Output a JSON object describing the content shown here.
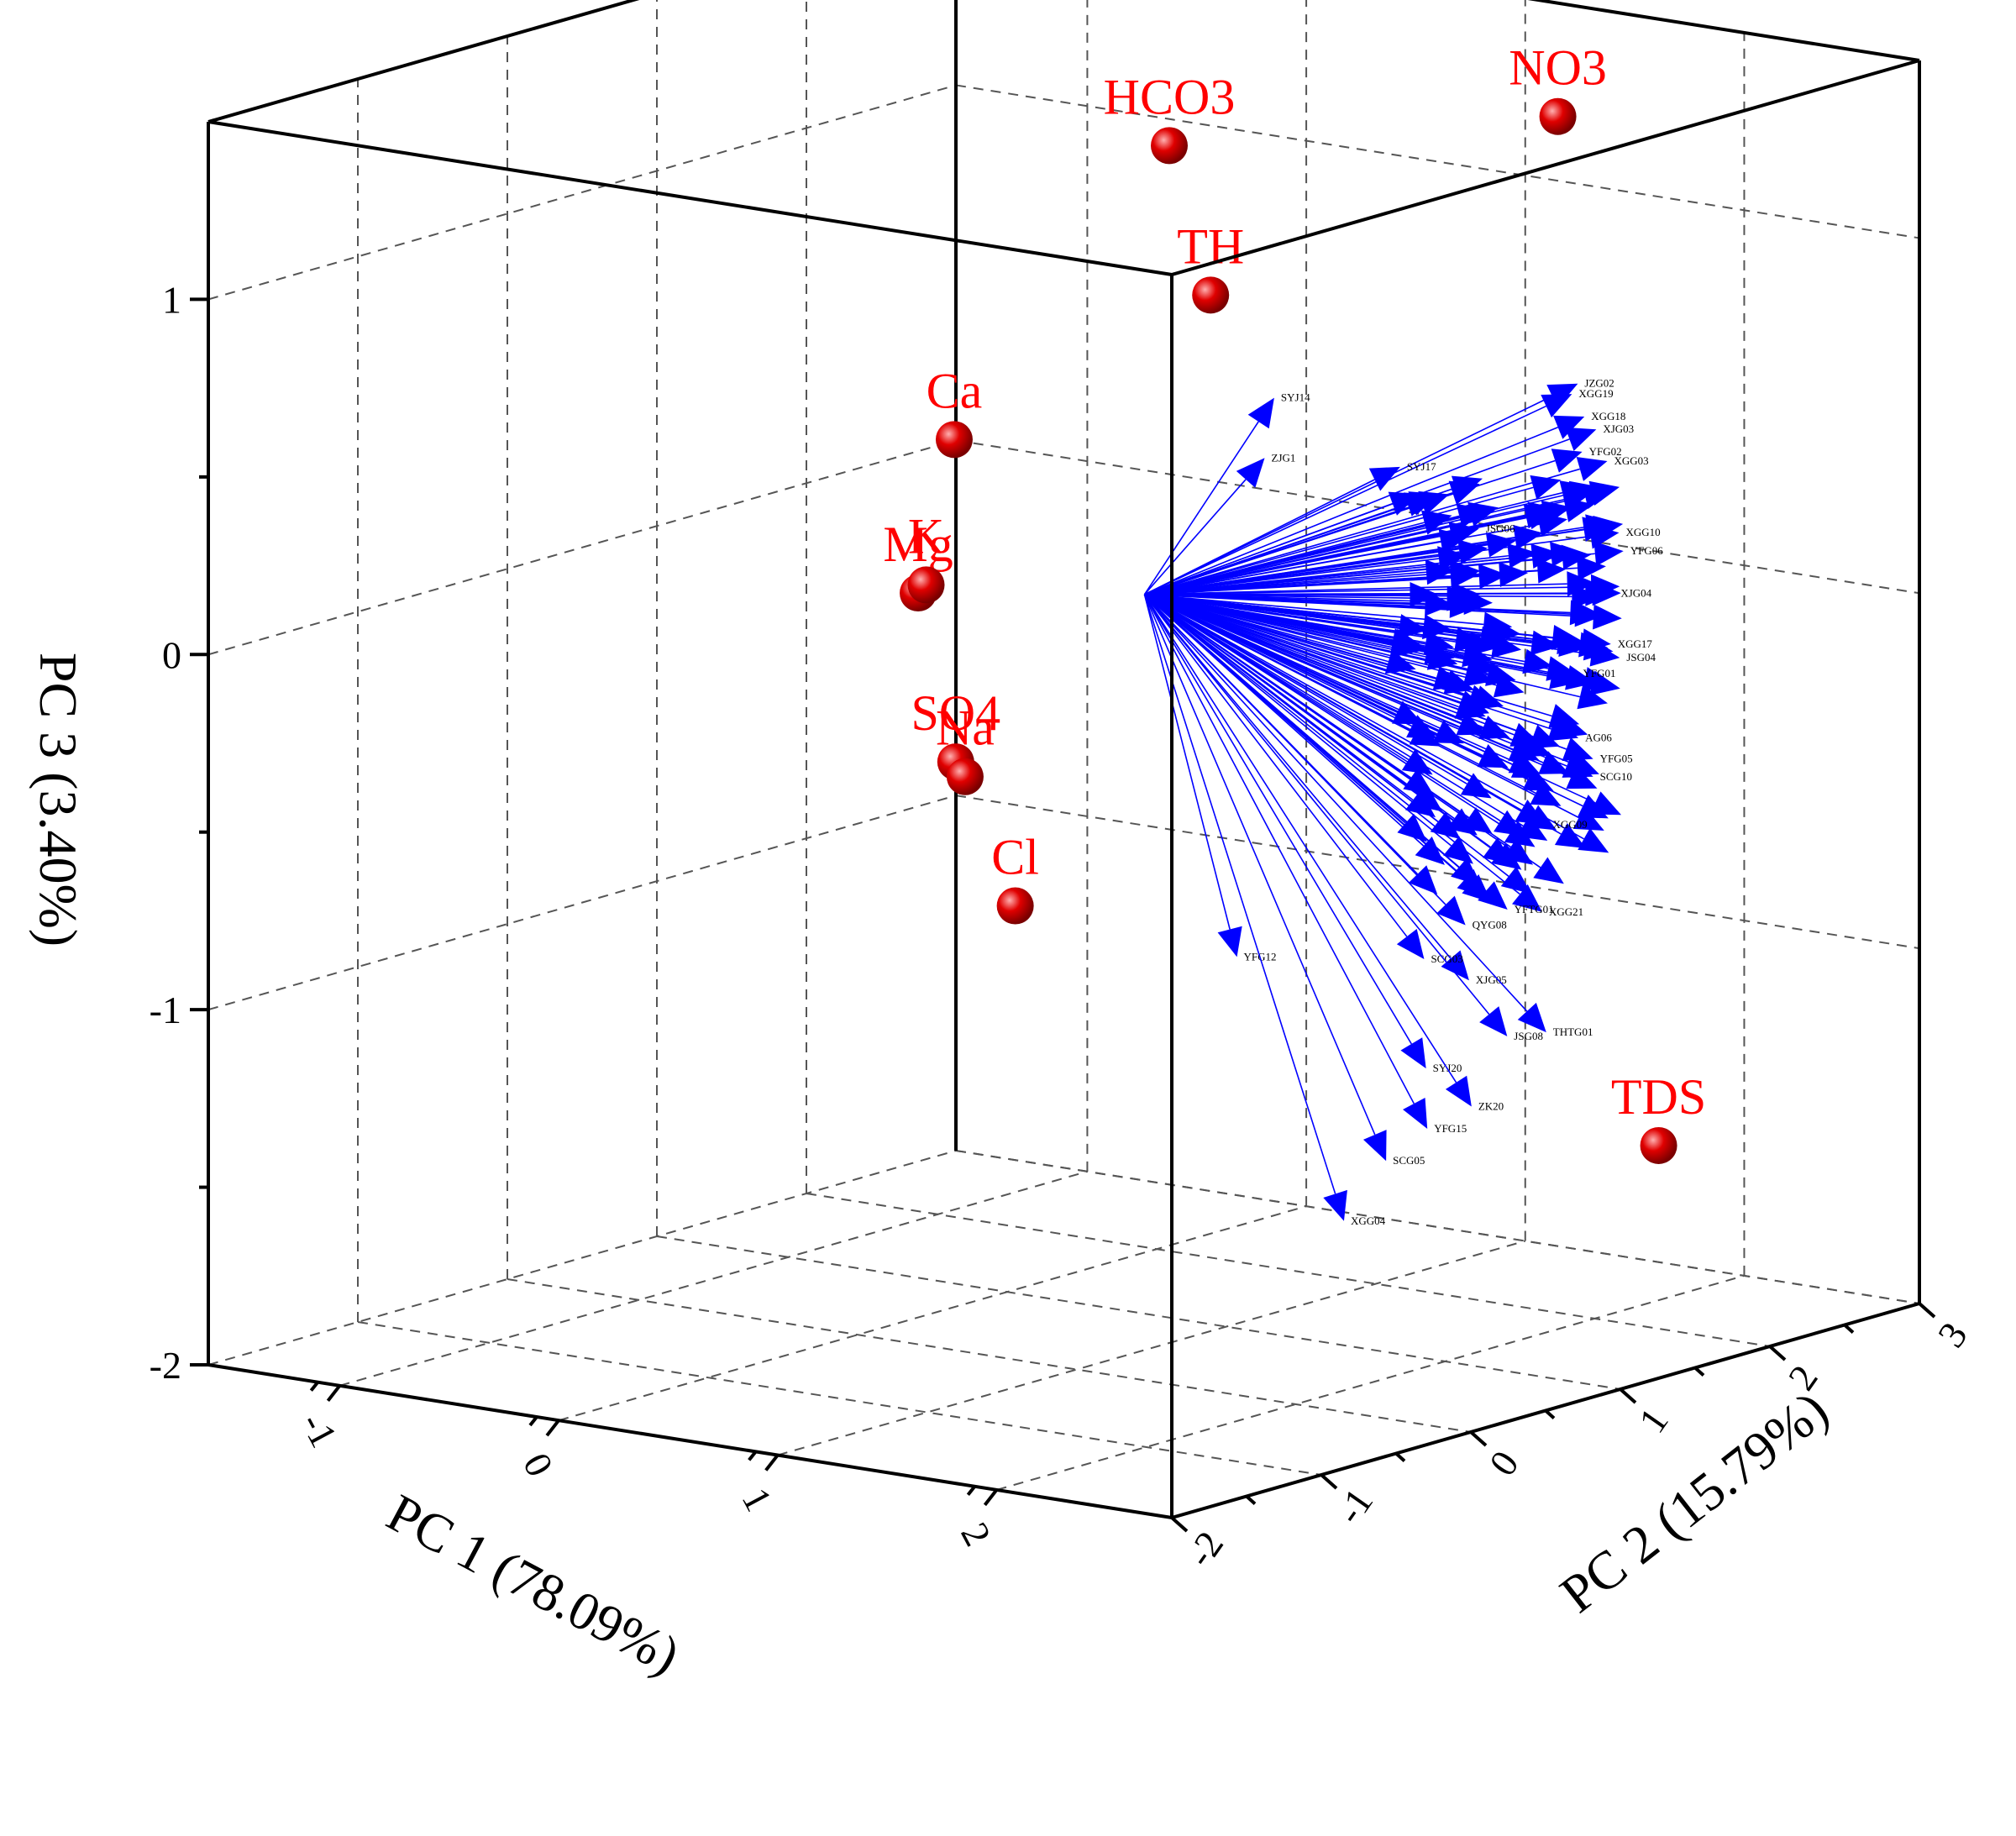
{
  "chart_data": {
    "type": "scatter",
    "subtype": "3d-biplot",
    "x_axis": {
      "label": "PC 1 (78.09%)",
      "ticks": [
        "-1",
        "0",
        "1",
        "2"
      ],
      "range": [
        -1.6,
        2.8
      ]
    },
    "y_axis": {
      "label": "PC 2 (15.79%)",
      "ticks": [
        "-2",
        "-1",
        "0",
        "1",
        "2",
        "3"
      ],
      "range": [
        -2,
        3
      ]
    },
    "z_axis": {
      "label": "PC 3 (3.40%)",
      "ticks": [
        "-2",
        "-1",
        "0",
        "1"
      ],
      "range": [
        -2,
        1.5
      ]
    },
    "grid": true,
    "variables": [
      {
        "name": "NO3",
        "pc1": 1.62,
        "pc2": 2.31,
        "pc3": 1.31
      },
      {
        "name": "HCO3",
        "pc1": 0.74,
        "pc2": 1.0,
        "pc3": 1.3
      },
      {
        "name": "TH",
        "pc1": 1.12,
        "pc2": 0.72,
        "pc3": 0.95
      },
      {
        "name": "Ca",
        "pc1": -0.01,
        "pc2": 0.66,
        "pc3": 0.44
      },
      {
        "name": "Mg",
        "pc1": -0.4,
        "pc2": 0.99,
        "pc3": -0.07
      },
      {
        "name": "K",
        "pc1": -0.35,
        "pc2": 0.97,
        "pc3": -0.04
      },
      {
        "name": "SO4",
        "pc1": -0.16,
        "pc2": 0.89,
        "pc3": -0.51
      },
      {
        "name": "Na",
        "pc1": -0.09,
        "pc2": 0.85,
        "pc3": -0.54
      },
      {
        "name": "Cl",
        "pc1": 0.18,
        "pc2": 0.79,
        "pc3": -0.87
      },
      {
        "name": "TDS",
        "pc1": 2.49,
        "pc2": 1.71,
        "pc3": -1.43
      }
    ],
    "samples": {
      "origin": {
        "pc1": 0.9,
        "pc2": 0.6,
        "pc3": 0.1
      },
      "labeled": [
        {
          "label": "JZG02",
          "pc1": 1.65,
          "pc2": 2.4,
          "pc3": 0.55
        },
        {
          "label": "XGG19",
          "pc1": 1.63,
          "pc2": 2.39,
          "pc3": 0.52
        },
        {
          "label": "XGG18",
          "pc1": 1.68,
          "pc2": 2.4,
          "pc3": 0.46
        },
        {
          "label": "XJG03",
          "pc1": 1.7,
          "pc2": 2.45,
          "pc3": 0.42
        },
        {
          "label": "YFG02",
          "pc1": 1.67,
          "pc2": 2.4,
          "pc3": 0.36
        },
        {
          "label": "XGG03",
          "pc1": 1.73,
          "pc2": 2.48,
          "pc3": 0.33
        },
        {
          "label": "SYJ14",
          "pc1": 0.83,
          "pc2": 1.57,
          "pc3": 0.53
        },
        {
          "label": "ZJG1",
          "pc1": 0.8,
          "pc2": 1.55,
          "pc3": 0.36
        },
        {
          "label": "SYJ17",
          "pc1": 1.18,
          "pc2": 1.9,
          "pc3": 0.33
        },
        {
          "label": "JSG06",
          "pc1": 1.39,
          "pc2": 2.12,
          "pc3": 0.15
        },
        {
          "label": "XGG10",
          "pc1": 1.77,
          "pc2": 2.5,
          "pc3": 0.13
        },
        {
          "label": "YFG06",
          "pc1": 1.79,
          "pc2": 2.5,
          "pc3": 0.08
        },
        {
          "label": "XJG04",
          "pc1": 1.76,
          "pc2": 2.48,
          "pc3": -0.04
        },
        {
          "label": "XGG17",
          "pc1": 1.76,
          "pc2": 2.46,
          "pc3": -0.18
        },
        {
          "label": "JSG04",
          "pc1": 1.78,
          "pc2": 2.49,
          "pc3": -0.22
        },
        {
          "label": "YFG01",
          "pc1": 1.67,
          "pc2": 2.36,
          "pc3": -0.26
        },
        {
          "label": "AG06",
          "pc1": 1.68,
          "pc2": 2.36,
          "pc3": -0.44
        },
        {
          "label": "YFG05",
          "pc1": 1.72,
          "pc2": 2.4,
          "pc3": -0.5
        },
        {
          "label": "SCG10",
          "pc1": 1.72,
          "pc2": 2.4,
          "pc3": -0.55
        },
        {
          "label": "XGG09",
          "pc1": 1.6,
          "pc2": 2.26,
          "pc3": -0.68
        },
        {
          "label": "XGG21",
          "pc1": 1.61,
          "pc2": 2.22,
          "pc3": -0.92
        },
        {
          "label": "YFTG01",
          "pc1": 1.52,
          "pc2": 2.12,
          "pc3": -0.91
        },
        {
          "label": "QYG08",
          "pc1": 1.41,
          "pc2": 2.0,
          "pc3": -0.95
        },
        {
          "label": "XJG05",
          "pc1": 1.44,
          "pc2": 1.98,
          "pc3": -1.1
        },
        {
          "label": "SCG03",
          "pc1": 1.31,
          "pc2": 1.87,
          "pc3": -1.04
        },
        {
          "label": "THTG01",
          "pc1": 1.69,
          "pc2": 2.13,
          "pc3": -1.24
        },
        {
          "label": "JSG08",
          "pc1": 1.58,
          "pc2": 2.03,
          "pc3": -1.25
        },
        {
          "label": "YFG12",
          "pc1": 0.81,
          "pc2": 1.35,
          "pc3": -1.02
        },
        {
          "label": "SYJ20",
          "pc1": 1.38,
          "pc2": 1.78,
          "pc3": -1.33
        },
        {
          "label": "YFG15",
          "pc1": 1.42,
          "pc2": 1.73,
          "pc3": -1.49
        },
        {
          "label": "ZK20",
          "pc1": 1.54,
          "pc2": 1.85,
          "pc3": -1.43
        },
        {
          "label": "SCG05",
          "pc1": 1.3,
          "pc2": 1.63,
          "pc3": -1.58
        },
        {
          "label": "XGG04",
          "pc1": 1.21,
          "pc2": 1.48,
          "pc3": -1.74
        }
      ],
      "unlabeled_count": 140
    }
  }
}
